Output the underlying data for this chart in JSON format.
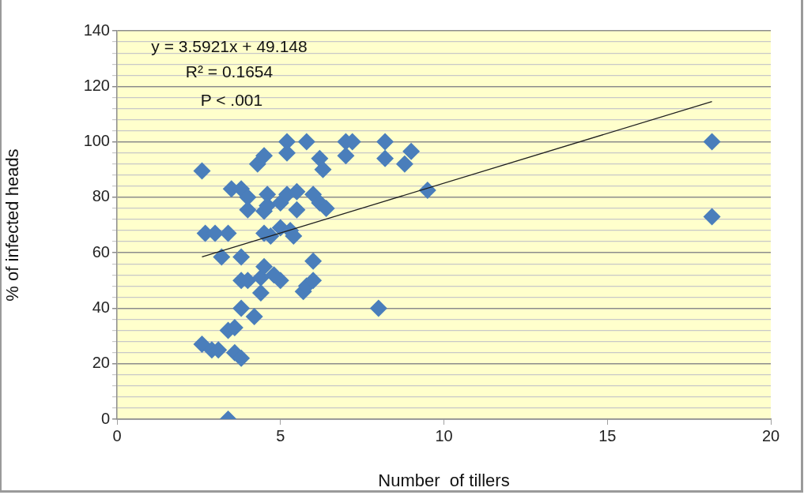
{
  "chart_data": {
    "type": "scatter",
    "xlabel": "Number  of tillers",
    "ylabel": "% of infected heads",
    "annotations": [
      "y = 3.5921x + 49.148",
      "R² = 0.1654",
      "P < .001"
    ],
    "series": [
      {
        "marker": "diamond",
        "color": "#4a7ebb",
        "x": [
          2.6,
          2.6,
          2.7,
          2.9,
          3.0,
          3.1,
          3.2,
          3.4,
          3.4,
          3.4,
          3.5,
          3.6,
          3.6,
          3.8,
          3.8,
          3.8,
          3.8,
          3.8,
          4.0,
          4.0,
          4.0,
          4.2,
          4.3,
          4.4,
          4.4,
          4.5,
          4.5,
          4.5,
          4.5,
          4.6,
          4.6,
          4.7,
          4.8,
          5.0,
          5.0,
          5.0,
          5.2,
          5.2,
          5.2,
          5.3,
          5.4,
          5.5,
          5.5,
          5.7,
          5.8,
          5.8,
          6.0,
          6.0,
          6.0,
          6.2,
          6.2,
          6.3,
          6.4,
          7.0,
          7.0,
          7.2,
          8.0,
          8.2,
          8.2,
          8.8,
          9.0,
          9.5,
          18.2,
          18.2
        ],
        "values": [
          89.5,
          27,
          67,
          25,
          67,
          25,
          58.5,
          67,
          32,
          0,
          83,
          33,
          24,
          83,
          58.5,
          50,
          40,
          22,
          80,
          75.5,
          50,
          37,
          92,
          45.5,
          51,
          95,
          67,
          75,
          55,
          81,
          77,
          66,
          52,
          50,
          69,
          78,
          100,
          96,
          81,
          68,
          66,
          82,
          75.5,
          46,
          100,
          48,
          81,
          57,
          50,
          78,
          94,
          90,
          76,
          100,
          95,
          100,
          40,
          100,
          94,
          92,
          96.5,
          82.5,
          100,
          73
        ]
      },
      {
        "type": "line",
        "marker": "none",
        "color": "#1f1f1f",
        "x": [
          2.6,
          18.2
        ],
        "values": [
          58.5,
          114.5
        ]
      }
    ],
    "xlim": [
      0,
      20
    ],
    "xticks": [
      0,
      5,
      10,
      15,
      20
    ],
    "ylim": [
      0,
      140
    ],
    "yticks": [
      0,
      {
        "value": 4,
        "label": null
      },
      {
        "value": 8,
        "label": null
      },
      {
        "value": 12,
        "label": null
      },
      {
        "value": 16,
        "label": null
      },
      20,
      {
        "value": 24,
        "label": null
      },
      {
        "value": 28,
        "label": null
      },
      {
        "value": 32,
        "label": null
      },
      {
        "value": 36,
        "label": null
      },
      40,
      {
        "value": 44,
        "label": null
      },
      {
        "value": 48,
        "label": null
      },
      {
        "value": 52,
        "label": null
      },
      {
        "value": 56,
        "label": null
      },
      60,
      {
        "value": 64,
        "label": null
      },
      {
        "value": 68,
        "label": null
      },
      {
        "value": 72,
        "label": null
      },
      {
        "value": 76,
        "label": null
      },
      80,
      {
        "value": 84,
        "label": null
      },
      {
        "value": 88,
        "label": null
      },
      {
        "value": 92,
        "label": null
      },
      {
        "value": 96,
        "label": null
      },
      100,
      {
        "value": 104,
        "label": null
      },
      {
        "value": 108,
        "label": null
      },
      {
        "value": 112,
        "label": null
      },
      {
        "value": 116,
        "label": null
      },
      120,
      {
        "value": 124,
        "label": null
      },
      {
        "value": 128,
        "label": null
      },
      {
        "value": 132,
        "label": null
      },
      {
        "value": 136,
        "label": null
      },
      140
    ],
    "grid": "y",
    "legend": false
  }
}
